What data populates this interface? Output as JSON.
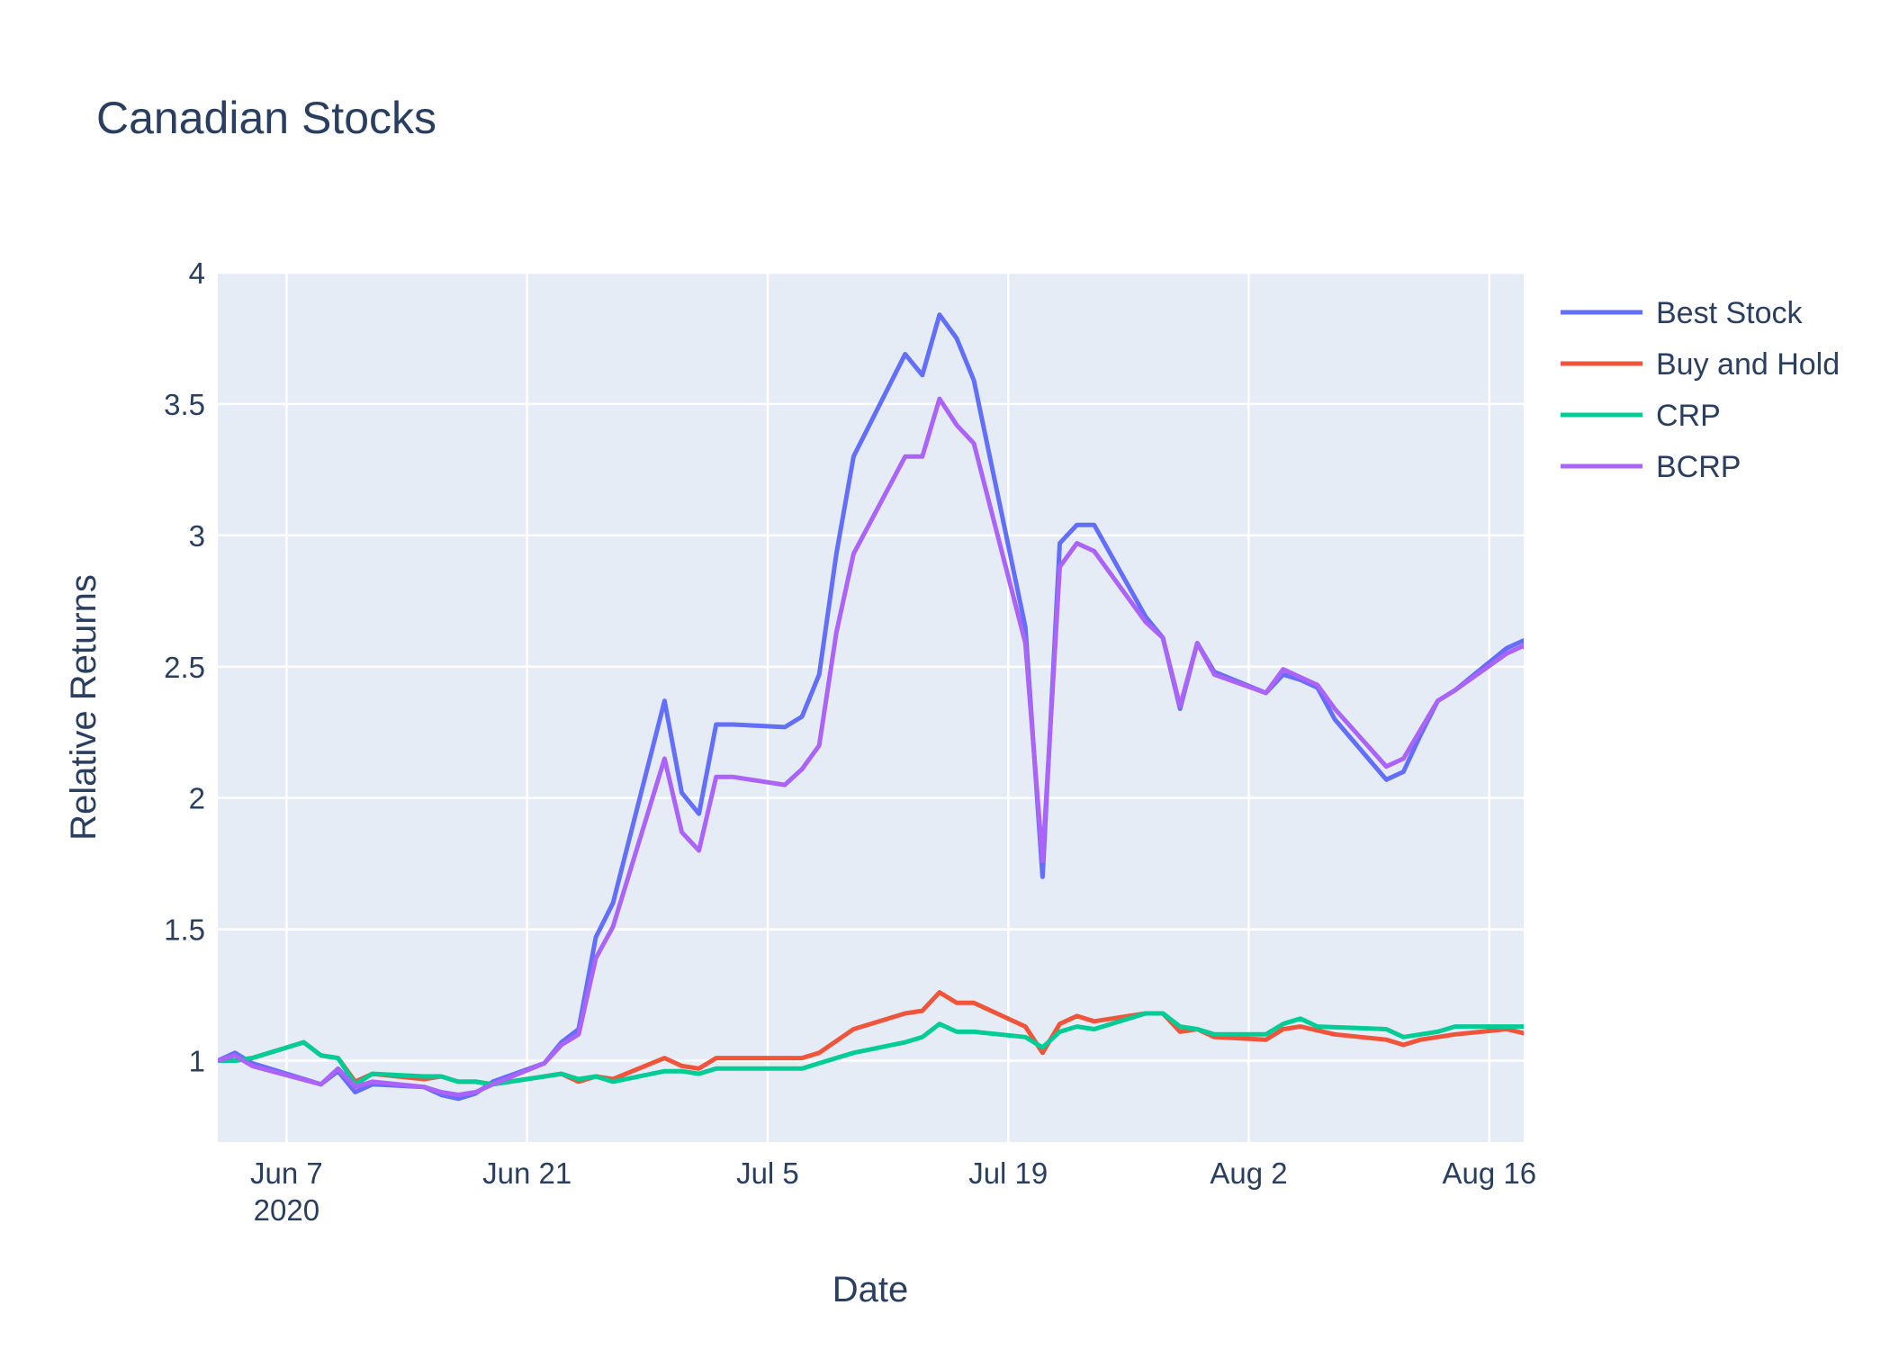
{
  "chart_data": {
    "type": "line",
    "title": "Canadian Stocks",
    "xlabel": "Date",
    "ylabel": "Relative Returns",
    "x_range": [
      "2020-06-03",
      "2020-08-18"
    ],
    "ylim": [
      0.69,
      4.0
    ],
    "x_ticks": [
      {
        "date": "2020-06-07",
        "label": "Jun 7",
        "sublabel": "2020"
      },
      {
        "date": "2020-06-21",
        "label": "Jun 21"
      },
      {
        "date": "2020-07-05",
        "label": "Jul 5"
      },
      {
        "date": "2020-07-19",
        "label": "Jul 19"
      },
      {
        "date": "2020-08-02",
        "label": "Aug 2"
      },
      {
        "date": "2020-08-16",
        "label": "Aug 16"
      }
    ],
    "y_ticks": [
      {
        "value": 1,
        "label": "1"
      },
      {
        "value": 1.5,
        "label": "1.5"
      },
      {
        "value": 2,
        "label": "2"
      },
      {
        "value": 2.5,
        "label": "2.5"
      },
      {
        "value": 3,
        "label": "3"
      },
      {
        "value": 3.5,
        "label": "3.5"
      },
      {
        "value": 4,
        "label": "4"
      }
    ],
    "grid": true,
    "legend_position": "top-right",
    "background_color": "#e5ecf6",
    "series": [
      {
        "name": "Best Stock",
        "color": "#636efa",
        "points": [
          [
            "2020-06-03",
            1.0
          ],
          [
            "2020-06-04",
            1.03
          ],
          [
            "2020-06-05",
            0.99
          ],
          [
            "2020-06-09",
            0.91
          ],
          [
            "2020-06-10",
            0.96
          ],
          [
            "2020-06-11",
            0.88
          ],
          [
            "2020-06-12",
            0.91
          ],
          [
            "2020-06-15",
            0.9
          ],
          [
            "2020-06-16",
            0.87
          ],
          [
            "2020-06-17",
            0.855
          ],
          [
            "2020-06-18",
            0.875
          ],
          [
            "2020-06-19",
            0.92
          ],
          [
            "2020-06-22",
            0.99
          ],
          [
            "2020-06-23",
            1.07
          ],
          [
            "2020-06-24",
            1.12
          ],
          [
            "2020-06-25",
            1.47
          ],
          [
            "2020-06-26",
            1.6
          ],
          [
            "2020-06-29",
            2.37
          ],
          [
            "2020-06-30",
            2.02
          ],
          [
            "2020-07-01",
            1.94
          ],
          [
            "2020-07-02",
            2.28
          ],
          [
            "2020-07-03",
            2.28
          ],
          [
            "2020-07-06",
            2.27
          ],
          [
            "2020-07-07",
            2.31
          ],
          [
            "2020-07-08",
            2.47
          ],
          [
            "2020-07-09",
            2.93
          ],
          [
            "2020-07-10",
            3.3
          ],
          [
            "2020-07-13",
            3.69
          ],
          [
            "2020-07-14",
            3.61
          ],
          [
            "2020-07-15",
            3.84
          ],
          [
            "2020-07-16",
            3.75
          ],
          [
            "2020-07-17",
            3.59
          ],
          [
            "2020-07-20",
            2.65
          ],
          [
            "2020-07-21",
            1.7
          ],
          [
            "2020-07-22",
            2.97
          ],
          [
            "2020-07-23",
            3.04
          ],
          [
            "2020-07-24",
            3.04
          ],
          [
            "2020-07-27",
            2.69
          ],
          [
            "2020-07-28",
            2.61
          ],
          [
            "2020-07-29",
            2.34
          ],
          [
            "2020-07-30",
            2.59
          ],
          [
            "2020-07-31",
            2.48
          ],
          [
            "2020-08-03",
            2.4
          ],
          [
            "2020-08-04",
            2.47
          ],
          [
            "2020-08-05",
            2.45
          ],
          [
            "2020-08-06",
            2.42
          ],
          [
            "2020-08-07",
            2.3
          ],
          [
            "2020-08-10",
            2.07
          ],
          [
            "2020-08-11",
            2.1
          ],
          [
            "2020-08-12",
            2.24
          ],
          [
            "2020-08-13",
            2.37
          ],
          [
            "2020-08-14",
            2.41
          ],
          [
            "2020-08-17",
            2.57
          ],
          [
            "2020-08-18",
            2.6
          ],
          [
            "2020-08-19",
            2.45
          ]
        ]
      },
      {
        "name": "Buy and Hold",
        "color": "#ef553b",
        "points": [
          [
            "2020-06-03",
            1.0
          ],
          [
            "2020-06-04",
            1.0
          ],
          [
            "2020-06-05",
            1.01
          ],
          [
            "2020-06-08",
            1.07
          ],
          [
            "2020-06-09",
            1.02
          ],
          [
            "2020-06-10",
            1.01
          ],
          [
            "2020-06-11",
            0.92
          ],
          [
            "2020-06-12",
            0.95
          ],
          [
            "2020-06-15",
            0.93
          ],
          [
            "2020-06-16",
            0.94
          ],
          [
            "2020-06-17",
            0.92
          ],
          [
            "2020-06-18",
            0.92
          ],
          [
            "2020-06-19",
            0.91
          ],
          [
            "2020-06-23",
            0.95
          ],
          [
            "2020-06-24",
            0.92
          ],
          [
            "2020-06-25",
            0.94
          ],
          [
            "2020-06-26",
            0.93
          ],
          [
            "2020-06-29",
            1.01
          ],
          [
            "2020-06-30",
            0.98
          ],
          [
            "2020-07-01",
            0.97
          ],
          [
            "2020-07-02",
            1.01
          ],
          [
            "2020-07-03",
            1.01
          ],
          [
            "2020-07-07",
            1.01
          ],
          [
            "2020-07-08",
            1.03
          ],
          [
            "2020-07-10",
            1.12
          ],
          [
            "2020-07-13",
            1.18
          ],
          [
            "2020-07-14",
            1.19
          ],
          [
            "2020-07-15",
            1.26
          ],
          [
            "2020-07-16",
            1.22
          ],
          [
            "2020-07-17",
            1.22
          ],
          [
            "2020-07-20",
            1.13
          ],
          [
            "2020-07-21",
            1.03
          ],
          [
            "2020-07-22",
            1.14
          ],
          [
            "2020-07-23",
            1.17
          ],
          [
            "2020-07-24",
            1.15
          ],
          [
            "2020-07-27",
            1.18
          ],
          [
            "2020-07-28",
            1.18
          ],
          [
            "2020-07-29",
            1.11
          ],
          [
            "2020-07-30",
            1.12
          ],
          [
            "2020-07-31",
            1.09
          ],
          [
            "2020-08-03",
            1.08
          ],
          [
            "2020-08-04",
            1.12
          ],
          [
            "2020-08-05",
            1.13
          ],
          [
            "2020-08-07",
            1.1
          ],
          [
            "2020-08-10",
            1.08
          ],
          [
            "2020-08-11",
            1.06
          ],
          [
            "2020-08-12",
            1.08
          ],
          [
            "2020-08-13",
            1.09
          ],
          [
            "2020-08-14",
            1.1
          ],
          [
            "2020-08-17",
            1.12
          ],
          [
            "2020-08-19",
            1.09
          ]
        ]
      },
      {
        "name": "CRP",
        "color": "#00cc96",
        "points": [
          [
            "2020-06-03",
            1.0
          ],
          [
            "2020-06-04",
            1.0
          ],
          [
            "2020-06-05",
            1.01
          ],
          [
            "2020-06-08",
            1.07
          ],
          [
            "2020-06-09",
            1.02
          ],
          [
            "2020-06-10",
            1.01
          ],
          [
            "2020-06-11",
            0.91
          ],
          [
            "2020-06-12",
            0.95
          ],
          [
            "2020-06-15",
            0.94
          ],
          [
            "2020-06-16",
            0.94
          ],
          [
            "2020-06-17",
            0.92
          ],
          [
            "2020-06-18",
            0.92
          ],
          [
            "2020-06-19",
            0.91
          ],
          [
            "2020-06-23",
            0.95
          ],
          [
            "2020-06-24",
            0.93
          ],
          [
            "2020-06-25",
            0.94
          ],
          [
            "2020-06-26",
            0.92
          ],
          [
            "2020-06-29",
            0.96
          ],
          [
            "2020-06-30",
            0.96
          ],
          [
            "2020-07-01",
            0.95
          ],
          [
            "2020-07-02",
            0.97
          ],
          [
            "2020-07-03",
            0.97
          ],
          [
            "2020-07-07",
            0.97
          ],
          [
            "2020-07-08",
            0.99
          ],
          [
            "2020-07-10",
            1.03
          ],
          [
            "2020-07-13",
            1.07
          ],
          [
            "2020-07-14",
            1.09
          ],
          [
            "2020-07-15",
            1.14
          ],
          [
            "2020-07-16",
            1.11
          ],
          [
            "2020-07-17",
            1.11
          ],
          [
            "2020-07-20",
            1.09
          ],
          [
            "2020-07-21",
            1.05
          ],
          [
            "2020-07-22",
            1.11
          ],
          [
            "2020-07-23",
            1.13
          ],
          [
            "2020-07-24",
            1.12
          ],
          [
            "2020-07-27",
            1.18
          ],
          [
            "2020-07-28",
            1.18
          ],
          [
            "2020-07-29",
            1.13
          ],
          [
            "2020-07-30",
            1.12
          ],
          [
            "2020-07-31",
            1.1
          ],
          [
            "2020-08-03",
            1.1
          ],
          [
            "2020-08-04",
            1.14
          ],
          [
            "2020-08-05",
            1.16
          ],
          [
            "2020-08-06",
            1.13
          ],
          [
            "2020-08-10",
            1.12
          ],
          [
            "2020-08-11",
            1.09
          ],
          [
            "2020-08-12",
            1.1
          ],
          [
            "2020-08-13",
            1.11
          ],
          [
            "2020-08-14",
            1.13
          ],
          [
            "2020-08-18",
            1.13
          ],
          [
            "2020-08-19",
            1.11
          ]
        ]
      },
      {
        "name": "BCRP",
        "color": "#ab63fa",
        "points": [
          [
            "2020-06-03",
            1.0
          ],
          [
            "2020-06-04",
            1.02
          ],
          [
            "2020-06-05",
            0.98
          ],
          [
            "2020-06-09",
            0.91
          ],
          [
            "2020-06-10",
            0.97
          ],
          [
            "2020-06-11",
            0.9
          ],
          [
            "2020-06-12",
            0.92
          ],
          [
            "2020-06-15",
            0.9
          ],
          [
            "2020-06-16",
            0.88
          ],
          [
            "2020-06-17",
            0.87
          ],
          [
            "2020-06-18",
            0.88
          ],
          [
            "2020-06-19",
            0.91
          ],
          [
            "2020-06-22",
            0.99
          ],
          [
            "2020-06-23",
            1.06
          ],
          [
            "2020-06-24",
            1.1
          ],
          [
            "2020-06-25",
            1.39
          ],
          [
            "2020-06-26",
            1.51
          ],
          [
            "2020-06-29",
            2.15
          ],
          [
            "2020-06-30",
            1.87
          ],
          [
            "2020-07-01",
            1.8
          ],
          [
            "2020-07-02",
            2.08
          ],
          [
            "2020-07-03",
            2.08
          ],
          [
            "2020-07-06",
            2.05
          ],
          [
            "2020-07-07",
            2.11
          ],
          [
            "2020-07-08",
            2.2
          ],
          [
            "2020-07-09",
            2.63
          ],
          [
            "2020-07-10",
            2.93
          ],
          [
            "2020-07-13",
            3.3
          ],
          [
            "2020-07-14",
            3.3
          ],
          [
            "2020-07-15",
            3.52
          ],
          [
            "2020-07-16",
            3.42
          ],
          [
            "2020-07-17",
            3.35
          ],
          [
            "2020-07-20",
            2.59
          ],
          [
            "2020-07-21",
            1.76
          ],
          [
            "2020-07-22",
            2.88
          ],
          [
            "2020-07-23",
            2.97
          ],
          [
            "2020-07-24",
            2.94
          ],
          [
            "2020-07-27",
            2.67
          ],
          [
            "2020-07-28",
            2.61
          ],
          [
            "2020-07-29",
            2.35
          ],
          [
            "2020-07-30",
            2.59
          ],
          [
            "2020-07-31",
            2.47
          ],
          [
            "2020-08-03",
            2.4
          ],
          [
            "2020-08-04",
            2.49
          ],
          [
            "2020-08-06",
            2.43
          ],
          [
            "2020-08-07",
            2.34
          ],
          [
            "2020-08-10",
            2.12
          ],
          [
            "2020-08-11",
            2.15
          ],
          [
            "2020-08-13",
            2.37
          ],
          [
            "2020-08-14",
            2.41
          ],
          [
            "2020-08-17",
            2.55
          ],
          [
            "2020-08-18",
            2.58
          ],
          [
            "2020-08-19",
            2.48
          ]
        ]
      }
    ]
  }
}
